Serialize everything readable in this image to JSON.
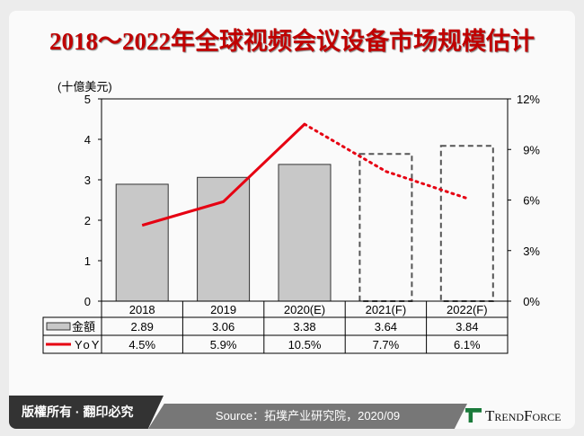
{
  "title": "2018～2022年全球视频会议设备市场规模估计",
  "unit": "(十億美元)",
  "footer": {
    "copyright": "版權所有 · 翻印必究",
    "source": "Source：拓墣产业研究院，2020/09",
    "logo": "TrendForce"
  },
  "colors": {
    "bar": "#c8c8c8",
    "line": "#e60012",
    "title": "#c00000"
  },
  "chart_data": {
    "type": "bar+line",
    "categories": [
      "2018",
      "2019",
      "2020(E)",
      "2021(F)",
      "2022(F)"
    ],
    "series": [
      {
        "name": "金額",
        "type": "bar",
        "axis": "left",
        "values": [
          2.89,
          3.06,
          3.38,
          3.64,
          3.84
        ],
        "labels": [
          "2.89",
          "3.06",
          "3.38",
          "3.64",
          "3.84"
        ],
        "forecast": [
          false,
          false,
          false,
          true,
          true
        ]
      },
      {
        "name": "YoY",
        "type": "line",
        "axis": "right",
        "values": [
          4.5,
          5.9,
          10.5,
          7.7,
          6.1
        ],
        "labels": [
          "4.5%",
          "5.9%",
          "10.5%",
          "7.7%",
          "6.1%"
        ],
        "dotted_from": "2020(E)"
      }
    ],
    "ylim_left": [
      0,
      5
    ],
    "yticks_left": [
      "0",
      "1",
      "2",
      "3",
      "4",
      "5"
    ],
    "ylim_right": [
      0,
      12
    ],
    "yticks_right": [
      "0%",
      "3%",
      "6%",
      "9%",
      "12%"
    ],
    "grid": false,
    "legend": "data-table"
  }
}
